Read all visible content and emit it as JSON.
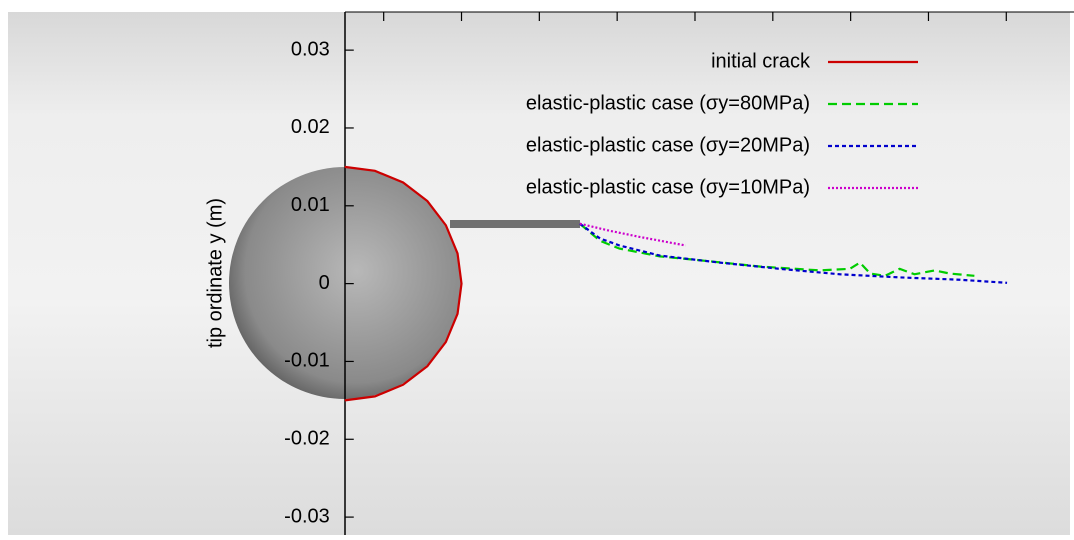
{
  "chart_data": {
    "type": "line",
    "y_label": "tip ordinate y (m)",
    "xlim": [
      -0.0443,
      0.0937
    ],
    "ylim": [
      -0.0323,
      0.0349
    ],
    "xticks": [
      0.005,
      0.015,
      0.025,
      0.035,
      0.045,
      0.055,
      0.065,
      0.075,
      0.085
    ],
    "yticks": [
      0.03,
      0.02,
      0.01,
      0,
      -0.01,
      -0.02,
      -0.03
    ],
    "legend": "top-right",
    "series": [
      {
        "name": "initial crack",
        "color": "#cc0000",
        "dash": "solid",
        "x": [
          0,
          0.00388,
          0.0075,
          0.01061,
          0.01299,
          0.01449,
          0.015,
          0.01449,
          0.01299,
          0.01061,
          0.0075,
          0.00388,
          0
        ],
        "values": [
          0.015,
          0.01449,
          0.01299,
          0.01061,
          0.0075,
          0.00388,
          0,
          -0.00388,
          -0.0075,
          -0.01061,
          -0.01299,
          -0.01449,
          -0.015
        ]
      },
      {
        "name": "elastic-plastic case (σy=80MPa)",
        "color": "#00cc00",
        "dash": "dashed",
        "x": [
          0.0302,
          0.0328,
          0.0353,
          0.0405,
          0.0456,
          0.0533,
          0.061,
          0.0649,
          0.0662,
          0.0675,
          0.0694,
          0.0713,
          0.0732,
          0.0758,
          0.0777,
          0.0809
        ],
        "values": [
          0.0077,
          0.0055,
          0.0045,
          0.0035,
          0.003,
          0.0022,
          0.0017,
          0.0019,
          0.0027,
          0.0013,
          0.001,
          0.0019,
          0.0012,
          0.0017,
          0.0013,
          0.001
        ]
      },
      {
        "name": "elastic-plastic case (σy=20MPa)",
        "color": "#0000cc",
        "dash": "dotted",
        "x": [
          0.0302,
          0.0328,
          0.0353,
          0.0405,
          0.0482,
          0.0559,
          0.0636,
          0.0713,
          0.079,
          0.0851
        ],
        "values": [
          0.0077,
          0.0058,
          0.0049,
          0.0036,
          0.0027,
          0.0019,
          0.0012,
          0.0008,
          0.0005,
          0.0001
        ]
      },
      {
        "name": "elastic-plastic case (σy=10MPa)",
        "color": "#cc00cc",
        "dash": "fine",
        "x": [
          0.0302,
          0.034,
          0.0379,
          0.0438
        ],
        "values": [
          0.0077,
          0.0068,
          0.006,
          0.0049
        ]
      }
    ]
  }
}
